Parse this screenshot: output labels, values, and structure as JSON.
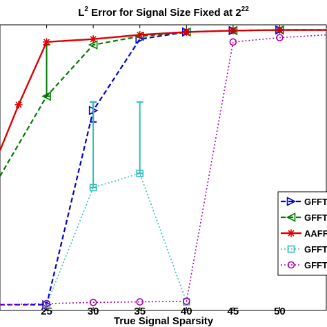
{
  "chart_data": {
    "type": "line",
    "title": {
      "base": "L",
      "sup1": "2",
      "middle": " Error for Signal Size Fixed at 2",
      "sup2": "22"
    },
    "xlabel": "True Signal Sparsity",
    "ylabel": "",
    "xlim": [
      20,
      55
    ],
    "ylim": [
      0,
      1
    ],
    "xticks": [
      25,
      30,
      35,
      40,
      45,
      50
    ],
    "grid": false,
    "legend_position": "right",
    "series": [
      {
        "name": "GFFT",
        "color": "#0000cc",
        "dash": "7,4",
        "marker": "triangle-right",
        "width": 2.2,
        "x": [
          20,
          25,
          30,
          35,
          40,
          45,
          50,
          55
        ],
        "y": [
          0.02,
          0.02,
          0.7,
          0.95,
          0.975,
          0.98,
          0.982,
          0.982
        ],
        "errors": [
          {
            "x": 30,
            "low": 0.66,
            "high": 0.73
          }
        ]
      },
      {
        "name": "GFFT",
        "color": "#007a00",
        "dash": "7,4",
        "marker": "triangle-left",
        "width": 2.2,
        "x": [
          20,
          25,
          30,
          35,
          40,
          45,
          50,
          55
        ],
        "y": [
          0.47,
          0.75,
          0.93,
          0.96,
          0.975,
          0.98,
          0.982,
          0.982
        ],
        "errors": [
          {
            "x": 25,
            "low": 0.75,
            "high": 0.93
          }
        ]
      },
      {
        "name": "AAFF",
        "color": "#dd0000",
        "dash": "",
        "marker": "star",
        "width": 2.4,
        "x": [
          20,
          22,
          25,
          30,
          35,
          40,
          45,
          50,
          55
        ],
        "y": [
          0.56,
          0.72,
          0.94,
          0.95,
          0.965,
          0.975,
          0.98,
          0.982,
          0.982
        ],
        "errors": []
      },
      {
        "name": "GFFT",
        "color": "#33bbbb",
        "dash": "2,3",
        "marker": "square",
        "width": 1.6,
        "x": [
          25,
          30,
          35,
          40
        ],
        "y": [
          0.02,
          0.43,
          0.48,
          0.03
        ],
        "errors": [
          {
            "x": 30,
            "low": 0.43,
            "high": 0.73
          },
          {
            "x": 35,
            "low": 0.48,
            "high": 0.73
          }
        ]
      },
      {
        "name": "GFFT",
        "color": "#aa00aa",
        "dash": "2,3",
        "marker": "circle",
        "width": 1.6,
        "x": [
          20,
          25,
          30,
          35,
          40,
          45,
          50,
          55
        ],
        "y": [
          0.02,
          0.024,
          0.028,
          0.03,
          0.032,
          0.94,
          0.955,
          0.965
        ],
        "errors": []
      }
    ]
  }
}
